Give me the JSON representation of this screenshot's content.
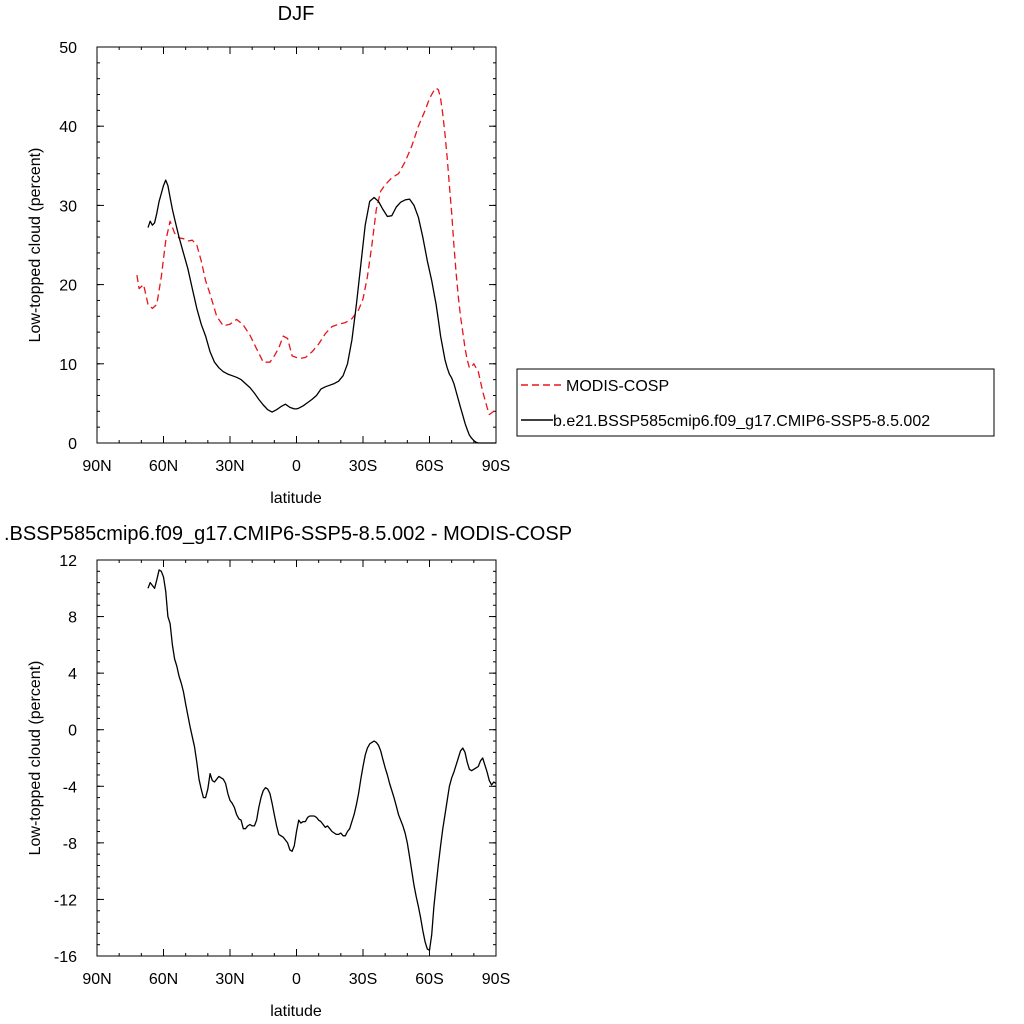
{
  "chart_data": [
    {
      "type": "line",
      "title": "DJF",
      "xlabel": "latitude",
      "ylabel": "Low-topped cloud (percent)",
      "x_tick_labels": [
        "90N",
        "60N",
        "30N",
        "0",
        "30S",
        "60S",
        "90S"
      ],
      "x_tick_values": [
        -90,
        -60,
        -30,
        0,
        30,
        60,
        90
      ],
      "xlim": [
        -90,
        90
      ],
      "ylim": [
        0,
        50
      ],
      "y_ticks": [
        0,
        10,
        20,
        30,
        40,
        50
      ],
      "y_tick_labels": [
        "0",
        "10",
        "20",
        "30",
        "40",
        "50"
      ],
      "legend_position": "right",
      "grid": false,
      "series": [
        {
          "name": "MODIS-COSP",
          "color": "#e8141b",
          "style": "dashed",
          "x": [
            -72,
            -71,
            -69,
            -67,
            -65,
            -63,
            -61,
            -59,
            -57,
            -55,
            -53,
            -51,
            -49,
            -47,
            -45,
            -43,
            -41,
            -39,
            -36,
            -33,
            -30,
            -27,
            -24,
            -21,
            -18,
            -15,
            -12,
            -10,
            -8,
            -6,
            -4,
            -2,
            0,
            2,
            4,
            7,
            10,
            13,
            16,
            19,
            22,
            25,
            28,
            30,
            32,
            34,
            36,
            38,
            40,
            43,
            46,
            49,
            52,
            55,
            58,
            60,
            62,
            63,
            64,
            65,
            66,
            67,
            68,
            69,
            70,
            71,
            72,
            73,
            74,
            75,
            76,
            77,
            78,
            79,
            80,
            82,
            84,
            86,
            87,
            88,
            89,
            90
          ],
          "y": [
            21.2,
            19.5,
            20,
            17.5,
            17,
            17.5,
            21,
            25.5,
            28,
            26.5,
            25.9,
            25.8,
            25.5,
            25.6,
            25.0,
            23.0,
            20.5,
            18.8,
            16.0,
            14.8,
            15.0,
            15.6,
            14.9,
            13.6,
            11.9,
            10.2,
            10.2,
            11.0,
            12.0,
            13.5,
            13.2,
            11,
            10.8,
            10.7,
            10.8,
            11.5,
            12.5,
            13.8,
            14.7,
            15.0,
            15.2,
            15.7,
            16.8,
            18.2,
            21.0,
            25.0,
            29.5,
            31.8,
            32.6,
            33.5,
            34.0,
            35.5,
            37.5,
            40.0,
            42.0,
            43.5,
            44.5,
            44.8,
            44.6,
            43.5,
            41.5,
            39.0,
            36.0,
            32.5,
            29.0,
            25.0,
            21.5,
            18.5,
            16.0,
            14.0,
            12.0,
            10.5,
            9.5,
            9.6,
            10.0,
            9.0,
            6.5,
            4.5,
            3.6,
            3.8,
            4.0,
            3.9
          ]
        },
        {
          "name": "b.e21.BSSP585cmip6.f09_g17.CMIP6-SSP5-8.5.002",
          "color": "#000000",
          "style": "solid",
          "x": [
            -67,
            -66,
            -65,
            -64,
            -63,
            -62,
            -61,
            -60,
            -59,
            -58,
            -57,
            -56,
            -55,
            -53,
            -51,
            -49,
            -47,
            -45,
            -43,
            -41,
            -39,
            -37,
            -35,
            -33,
            -31,
            -29,
            -27,
            -25,
            -23,
            -21,
            -19,
            -17,
            -15,
            -13,
            -11,
            -9,
            -7,
            -5,
            -3,
            -1,
            0,
            1,
            3,
            5,
            7,
            9,
            11,
            13,
            15,
            17,
            19,
            21,
            23,
            25,
            27,
            29,
            31,
            33,
            35,
            37,
            39,
            41,
            43,
            45,
            47,
            49,
            51,
            53,
            55,
            57,
            59,
            61,
            63,
            64,
            65,
            66,
            67,
            68,
            69,
            70,
            71,
            72,
            73,
            74,
            75,
            76,
            77,
            78,
            79,
            80,
            81,
            82,
            83,
            84,
            85,
            86,
            87,
            88,
            89,
            90
          ],
          "y": [
            27.2,
            28,
            27.5,
            27.8,
            29,
            30.5,
            31.5,
            32.5,
            33.2,
            32.5,
            31.0,
            29.5,
            28.3,
            26.0,
            24.0,
            22.0,
            19.5,
            17.0,
            15.0,
            13.5,
            11.5,
            10.2,
            9.5,
            9.0,
            8.7,
            8.5,
            8.3,
            8.0,
            7.5,
            7.0,
            6.3,
            5.5,
            4.8,
            4.2,
            3.9,
            4.2,
            4.6,
            4.9,
            4.5,
            4.3,
            4.3,
            4.4,
            4.7,
            5.1,
            5.5,
            6.0,
            6.8,
            7.1,
            7.3,
            7.5,
            7.8,
            8.5,
            10.0,
            13.0,
            17.5,
            22.5,
            27.5,
            30.5,
            31.0,
            30.5,
            29.5,
            28.6,
            28.7,
            29.8,
            30.4,
            30.7,
            30.8,
            30.0,
            28.5,
            26.0,
            23.0,
            20.5,
            17.5,
            15.5,
            13.5,
            12.0,
            10.5,
            9.5,
            8.7,
            8.2,
            7.5,
            6.5,
            5.5,
            4.5,
            3.5,
            2.5,
            1.7,
            1.0,
            0.6,
            0.3,
            0.1,
            0.0,
            0.0,
            0.0,
            0.0,
            0.0,
            0.0,
            0.0,
            0.0,
            0.0
          ]
        }
      ]
    },
    {
      "type": "line",
      "title": ".BSSP585cmip6.f09_g17.CMIP6-SSP5-8.5.002 - MODIS-COSP",
      "xlabel": "latitude",
      "ylabel": "Low-topped cloud (percent)",
      "x_tick_labels": [
        "90N",
        "60N",
        "30N",
        "0",
        "30S",
        "60S",
        "90S"
      ],
      "x_tick_values": [
        -90,
        -60,
        -30,
        0,
        30,
        60,
        90
      ],
      "xlim": [
        -90,
        90
      ],
      "ylim": [
        -16,
        12
      ],
      "y_ticks": [
        -16,
        -12,
        -8,
        -4,
        0,
        4,
        8,
        12
      ],
      "y_tick_labels": [
        "-16",
        "-12",
        "-8",
        "-4",
        "0",
        "4",
        "8",
        "12"
      ],
      "grid": false,
      "series": [
        {
          "color": "#000000",
          "style": "solid",
          "x": [
            -67,
            -66,
            -65,
            -64,
            -63,
            -62,
            -61,
            -60,
            -59,
            -58,
            -57,
            -56,
            -55,
            -54,
            -53,
            -52,
            -51,
            -50,
            -49,
            -48,
            -47,
            -46,
            -45,
            -44,
            -43,
            -42,
            -41,
            -40,
            -39,
            -38,
            -37,
            -36,
            -35,
            -34,
            -33,
            -32,
            -31,
            -30,
            -29,
            -28,
            -27,
            -26,
            -25,
            -24,
            -23,
            -22,
            -21,
            -20,
            -19,
            -18,
            -17,
            -16,
            -15,
            -14,
            -13,
            -12,
            -11,
            -10,
            -9,
            -8,
            -7,
            -6,
            -5,
            -4,
            -3,
            -2,
            -1,
            0,
            1,
            2,
            3,
            4,
            5,
            6,
            7,
            8,
            9,
            10,
            11,
            12,
            13,
            14,
            15,
            16,
            17,
            18,
            19,
            20,
            21,
            22,
            23,
            24,
            25,
            26,
            27,
            28,
            29,
            30,
            31,
            32,
            33,
            34,
            35,
            36,
            37,
            38,
            39,
            40,
            41,
            42,
            43,
            44,
            45,
            46,
            47,
            48,
            49,
            50,
            51,
            52,
            53,
            54,
            55,
            56,
            57,
            58,
            59,
            60,
            61,
            62,
            63,
            64,
            65,
            66,
            67,
            68,
            69,
            70,
            71,
            72,
            73,
            74,
            75,
            76,
            77,
            78,
            79,
            80,
            81,
            82,
            83,
            84,
            85,
            86,
            87,
            88,
            89,
            90
          ],
          "y": [
            10.0,
            10.4,
            10.2,
            10.0,
            10.6,
            11.3,
            11.2,
            10.8,
            9.8,
            8.0,
            7.5,
            6.0,
            5.0,
            4.5,
            3.8,
            3.3,
            2.7,
            1.8,
            1.0,
            0.2,
            -0.5,
            -1.2,
            -2.3,
            -3.5,
            -4.2,
            -4.8,
            -4.8,
            -4.2,
            -3.1,
            -3.6,
            -3.7,
            -3.5,
            -3.3,
            -3.4,
            -3.5,
            -3.8,
            -4.5,
            -5.0,
            -5.2,
            -5.5,
            -6.0,
            -6.3,
            -6.4,
            -7.0,
            -7.0,
            -6.8,
            -6.7,
            -6.8,
            -6.8,
            -6.4,
            -5.5,
            -4.8,
            -4.3,
            -4.1,
            -4.2,
            -4.5,
            -5.2,
            -6.0,
            -6.8,
            -7.4,
            -7.5,
            -7.6,
            -7.8,
            -8.0,
            -8.5,
            -8.6,
            -8.2,
            -7.2,
            -6.4,
            -6.6,
            -6.5,
            -6.5,
            -6.2,
            -6.1,
            -6.1,
            -6.1,
            -6.2,
            -6.4,
            -6.5,
            -6.7,
            -6.9,
            -6.8,
            -7.0,
            -7.2,
            -7.3,
            -7.4,
            -7.4,
            -7.3,
            -7.5,
            -7.5,
            -7.2,
            -7.0,
            -6.5,
            -6.0,
            -5.3,
            -4.5,
            -3.5,
            -2.6,
            -1.8,
            -1.3,
            -1.0,
            -0.9,
            -0.8,
            -0.9,
            -1.1,
            -1.5,
            -2.1,
            -2.7,
            -3.2,
            -3.8,
            -4.3,
            -4.8,
            -5.4,
            -6.0,
            -6.4,
            -6.8,
            -7.3,
            -8.0,
            -9.0,
            -10.0,
            -11.0,
            -11.8,
            -12.5,
            -13.3,
            -14.2,
            -15.0,
            -15.5,
            -15.6,
            -14.5,
            -12.5,
            -11.0,
            -9.5,
            -8.2,
            -7.0,
            -6.0,
            -5.0,
            -4.0,
            -3.4,
            -3.0,
            -2.5,
            -2.0,
            -1.5,
            -1.3,
            -1.6,
            -2.3,
            -2.8,
            -2.9,
            -2.8,
            -2.7,
            -2.6,
            -2.2,
            -2.0,
            -2.5,
            -3.0,
            -3.6,
            -3.9,
            -3.7,
            -3.8
          ]
        }
      ]
    }
  ]
}
